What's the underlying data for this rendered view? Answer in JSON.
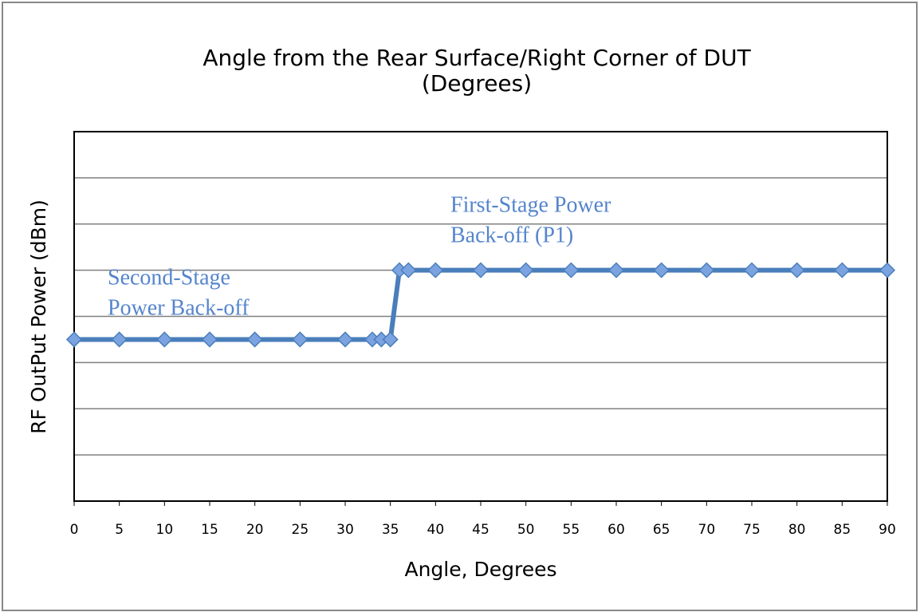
{
  "chart_data": {
    "type": "line",
    "title": [
      "Angle from the Rear Surface/Right Corner of DUT",
      "(Degrees)"
    ],
    "x_label": "Angle, Degrees",
    "y_label": "RF OutPut Power (dBm)",
    "x": [
      0,
      5,
      10,
      15,
      20,
      25,
      30,
      33,
      34,
      35,
      36,
      37,
      40,
      45,
      50,
      55,
      60,
      65,
      70,
      75,
      80,
      85,
      90
    ],
    "series": [
      {
        "name": "RF OutPut Power",
        "color": "#4a7ebb",
        "values": [
          3.5,
          3.5,
          3.5,
          3.5,
          3.5,
          3.5,
          3.5,
          3.5,
          3.5,
          3.5,
          5,
          5,
          5,
          5,
          5,
          5,
          5,
          5,
          5,
          5,
          5,
          5,
          5
        ]
      }
    ],
    "xlim": [
      0,
      90
    ],
    "xticks": [
      0,
      5,
      10,
      15,
      20,
      25,
      30,
      35,
      40,
      45,
      50,
      55,
      60,
      65,
      70,
      75,
      80,
      85,
      90
    ],
    "ylim": [
      0,
      8
    ],
    "yticks": [
      0,
      1,
      2,
      3,
      4,
      5,
      6,
      7,
      8
    ],
    "grid": true,
    "annotations": [
      {
        "text": [
          "Second-Stage",
          "Power Back-off"
        ]
      },
      {
        "text": [
          "First-Stage Power",
          "Back-off (P1)"
        ]
      }
    ]
  }
}
